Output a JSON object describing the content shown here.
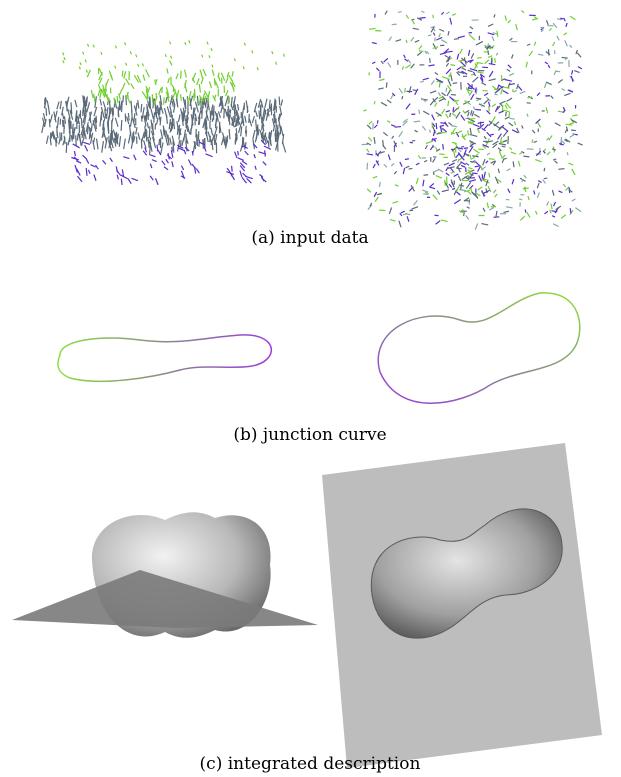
{
  "figure": {
    "panels": [
      {
        "caption": "(a) input data"
      },
      {
        "caption": "(b) junction curve"
      },
      {
        "caption": "(c) integrated description"
      }
    ]
  }
}
